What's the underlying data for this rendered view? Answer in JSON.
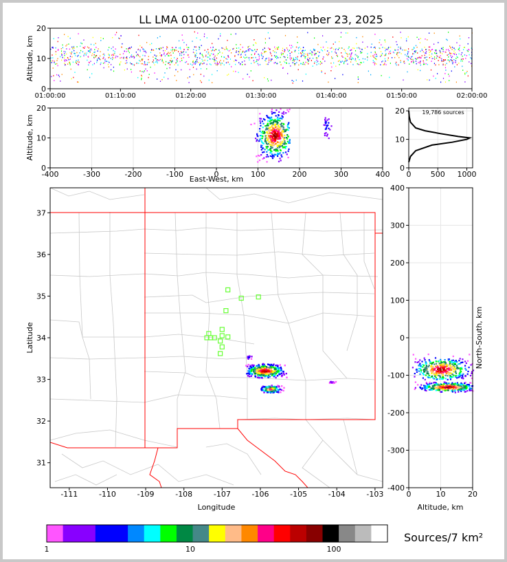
{
  "title": "LL LMA 0100-0200 UTC September 23, 2025",
  "colors": {
    "map_border": "#ff0000",
    "county_lines": "#c8c8c8",
    "station_marker": "#66ff33",
    "grid": "#e6e6e6"
  },
  "colorbar": {
    "title": "Sources/7 km²",
    "scale": "log",
    "tick_labels": [
      "1",
      "10",
      "100"
    ],
    "colors": [
      "#ff55ff",
      "#8800ff",
      "#8800ff",
      "#0000ff",
      "#0000ff",
      "#0088ff",
      "#00ffff",
      "#00ff00",
      "#008844",
      "#448888",
      "#ffff00",
      "#ffbb88",
      "#ff8800",
      "#ff0088",
      "#ff0000",
      "#bb0000",
      "#880000",
      "#000000",
      "#888888",
      "#bbbbbb",
      "#ffffff"
    ]
  },
  "chart_data": [
    {
      "id": "time-height",
      "type": "scatter",
      "xlabel": "",
      "ylabel": "Altitude, km",
      "x_tick_labels": [
        "01:00:00",
        "01:10:00",
        "01:20:00",
        "01:30:00",
        "01:40:00",
        "01:50:00",
        "02:00:00"
      ],
      "xlim": [
        "01:00:00",
        "02:00:00"
      ],
      "ylim": [
        0,
        20
      ],
      "y_ticks": [
        0,
        10,
        20
      ],
      "source_altitude_km": {
        "core": [
          8,
          14
        ],
        "extent": [
          2,
          19
        ]
      },
      "grid": false
    },
    {
      "id": "ew-height",
      "type": "heatmap",
      "xlabel": "East-West, km",
      "ylabel": "Altitude, km",
      "xlim": [
        -400,
        400
      ],
      "ylim": [
        0,
        20
      ],
      "x_ticks": [
        -400,
        -300,
        -200,
        -100,
        0,
        100,
        200,
        300,
        400
      ],
      "y_ticks": [
        0,
        10,
        20
      ],
      "grid": true,
      "clusters": [
        {
          "x_range_km": [
            80,
            175
          ],
          "alt_range_km": [
            2,
            20
          ],
          "peak_x_km": 140,
          "peak_alt_km": 11
        },
        {
          "x_range_km": [
            255,
            280
          ],
          "alt_range_km": [
            8,
            18
          ],
          "peak_x_km": 265,
          "peak_alt_km": 14
        }
      ]
    },
    {
      "id": "altitude-histogram",
      "type": "line",
      "annotation": "19,786 sources",
      "xlim": [
        0,
        1100
      ],
      "ylim": [
        0,
        21
      ],
      "x_ticks": [
        0,
        500,
        1000
      ],
      "y_ticks": [
        0,
        10,
        20
      ],
      "altitude_km": [
        2,
        4,
        6,
        8,
        9,
        10,
        10.5,
        11,
        12,
        13,
        14,
        16,
        18,
        20
      ],
      "count": [
        0,
        30,
        120,
        400,
        750,
        1000,
        1050,
        850,
        550,
        280,
        120,
        30,
        8,
        0
      ]
    },
    {
      "id": "plan-view",
      "type": "heatmap",
      "xlabel": "Longitude",
      "ylabel": "Latitude",
      "xlim": [
        -111.5,
        -102.8
      ],
      "ylim": [
        30.4,
        37.6
      ],
      "x_ticks": [
        -111,
        -110,
        -109,
        -108,
        -107,
        -106,
        -105,
        -104,
        -103
      ],
      "y_ticks": [
        31,
        32,
        33,
        34,
        35,
        36,
        37
      ],
      "stations": [
        [
          -106.85,
          35.15
        ],
        [
          -106.5,
          34.95
        ],
        [
          -106.05,
          34.98
        ],
        [
          -106.9,
          34.65
        ],
        [
          -107.0,
          34.2
        ],
        [
          -107.35,
          34.1
        ],
        [
          -107.4,
          34.0
        ],
        [
          -107.3,
          34.0
        ],
        [
          -107.2,
          34.0
        ],
        [
          -107.0,
          34.05
        ],
        [
          -106.85,
          34.02
        ],
        [
          -107.05,
          33.92
        ],
        [
          -107.0,
          33.78
        ],
        [
          -107.05,
          33.62
        ]
      ],
      "clusters": [
        {
          "lon_range": [
            -106.4,
            -105.3
          ],
          "lat_range": [
            33.05,
            33.4
          ],
          "peak": [
            -105.9,
            33.22
          ]
        },
        {
          "lon_range": [
            -106.0,
            -105.4
          ],
          "lat_range": [
            32.7,
            32.9
          ],
          "peak": [
            -105.75,
            32.78
          ]
        },
        {
          "lon_range": [
            -104.3,
            -104.0
          ],
          "lat_range": [
            32.93,
            32.98
          ],
          "peak": [
            -104.15,
            32.95
          ]
        },
        {
          "lon_range": [
            -106.4,
            -106.2
          ],
          "lat_range": [
            33.5,
            33.6
          ],
          "peak": [
            -106.3,
            33.55
          ]
        }
      ]
    },
    {
      "id": "ns-height",
      "type": "heatmap",
      "xlabel": "Altitude, km",
      "ylabel": "North-South, km",
      "xlim": [
        0,
        20
      ],
      "ylim": [
        -400,
        400
      ],
      "x_ticks": [
        0,
        10,
        20
      ],
      "y_ticks": [
        -400,
        -300,
        -200,
        -100,
        0,
        100,
        200,
        300,
        400
      ],
      "grid": true,
      "clusters": [
        {
          "alt_range_km": [
            1,
            20
          ],
          "ns_range_km": [
            -110,
            -35
          ],
          "peak_alt_km": 10,
          "peak_ns_km": -83
        },
        {
          "alt_range_km": [
            1,
            20
          ],
          "ns_range_km": [
            -145,
            -115
          ],
          "peak_alt_km": 12,
          "peak_ns_km": -130
        }
      ]
    }
  ]
}
